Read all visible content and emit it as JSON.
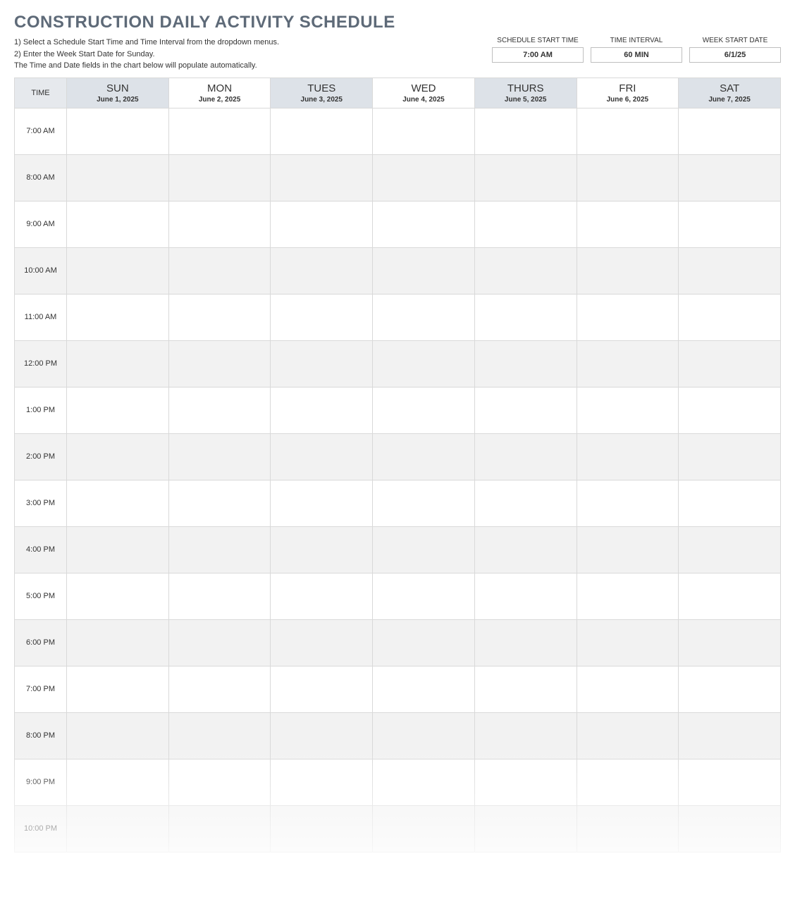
{
  "title": "CONSTRUCTION DAILY ACTIVITY SCHEDULE",
  "instructions": {
    "line1": "1)  Select a Schedule Start Time and Time Interval from the dropdown menus.",
    "line2": "2)  Enter the Week Start Date for Sunday.",
    "line3": "The Time and Date fields in the chart below will populate automatically."
  },
  "controls": [
    {
      "label": "SCHEDULE START TIME",
      "value": "7:00 AM"
    },
    {
      "label": "TIME INTERVAL",
      "value": "60 MIN"
    },
    {
      "label": "WEEK START DATE",
      "value": "6/1/25"
    }
  ],
  "timeHeader": "TIME",
  "days": [
    {
      "name": "SUN",
      "date": "June 1, 2025",
      "shaded": true
    },
    {
      "name": "MON",
      "date": "June 2, 2025",
      "shaded": false
    },
    {
      "name": "TUES",
      "date": "June 3, 2025",
      "shaded": true
    },
    {
      "name": "WED",
      "date": "June 4, 2025",
      "shaded": false
    },
    {
      "name": "THURS",
      "date": "June 5, 2025",
      "shaded": true
    },
    {
      "name": "FRI",
      "date": "June 6, 2025",
      "shaded": false
    },
    {
      "name": "SAT",
      "date": "June 7, 2025",
      "shaded": true
    }
  ],
  "times": [
    "7:00 AM",
    "8:00 AM",
    "9:00 AM",
    "10:00 AM",
    "11:00 AM",
    "12:00 PM",
    "1:00 PM",
    "2:00 PM",
    "3:00 PM",
    "4:00 PM",
    "5:00 PM",
    "6:00 PM",
    "7:00 PM",
    "8:00 PM",
    "9:00 PM",
    "10:00 PM"
  ],
  "colors": {
    "title": "#5e6a78",
    "headerShaded": "#dde2e8",
    "timeHeaderBg": "#e6e9ed",
    "rowShaded": "#f2f2f2",
    "border": "#d9d9d9",
    "controlBorder": "#bfbfbf"
  }
}
